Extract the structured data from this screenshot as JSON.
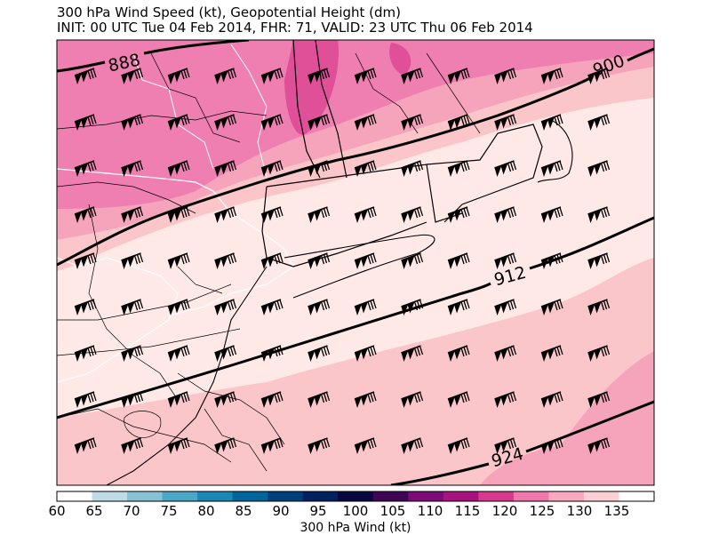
{
  "title_line1": "300 hPa Wind Speed (kt), Geopotential Height (dm)",
  "title_line2": "INIT: 00 UTC Tue 04 Feb 2014, FHR: 71, VALID: 23 UTC Thu 06 Feb 2014",
  "height_contours": [
    {
      "label": "888",
      "value": 888
    },
    {
      "label": "900",
      "value": 900
    },
    {
      "label": "912",
      "value": 912
    },
    {
      "label": "924",
      "value": 924
    }
  ],
  "wind_barbs": {
    "icon": "wind-barb-icon",
    "glyph": "pennant-barb"
  },
  "colorbar": {
    "label": "300 hPa Wind (kt)",
    "ticks": [
      "60",
      "65",
      "70",
      "75",
      "80",
      "85",
      "90",
      "95",
      "100",
      "105",
      "110",
      "115",
      "120",
      "125",
      "130",
      "135"
    ],
    "colors": [
      "#ffffff",
      "#bfdbe8",
      "#86c1d6",
      "#4ca6c6",
      "#1a88b3",
      "#00659a",
      "#00407a",
      "#00205e",
      "#0c0640",
      "#3f0454",
      "#7a0b77",
      "#a8127e",
      "#d63a8e",
      "#ee78aa",
      "#f8a9bf",
      "#fdd1d4",
      "#ffffff"
    ]
  },
  "speed_colors": {
    "s110": "#e05098",
    "s115": "#ee7fb0",
    "s120": "#f6a3bc",
    "s125": "#fbc6c9",
    "s130": "#ffe9e7",
    "s135": "#ffffff"
  }
}
